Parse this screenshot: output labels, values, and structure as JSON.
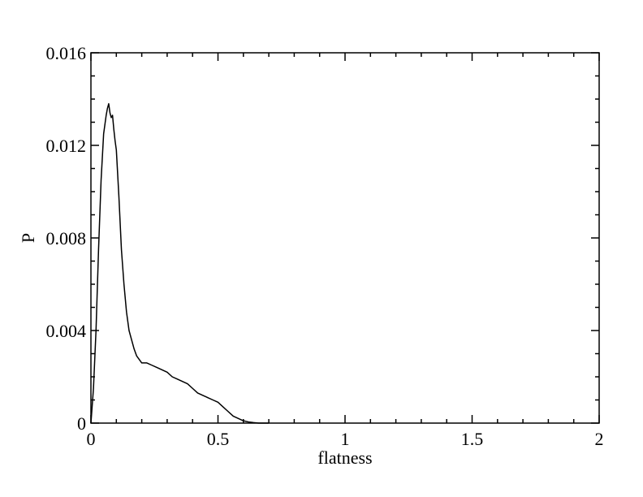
{
  "chart_data": {
    "type": "line",
    "title": "",
    "xlabel": "flatness",
    "ylabel": "P",
    "xlim": [
      0,
      2
    ],
    "ylim": [
      0,
      0.016
    ],
    "grid": false,
    "legend": "none",
    "line_color": "#000000",
    "x_ticks": [
      {
        "value": 0,
        "label": "0"
      },
      {
        "value": 0.5,
        "label": "0.5"
      },
      {
        "value": 1,
        "label": "1"
      },
      {
        "value": 1.5,
        "label": "1.5"
      },
      {
        "value": 2,
        "label": "2"
      }
    ],
    "x_minor_ticks": [
      0.1,
      0.2,
      0.3,
      0.4,
      0.6,
      0.7,
      0.8,
      0.9,
      1.1,
      1.2,
      1.3,
      1.4,
      1.6,
      1.7,
      1.8,
      1.9
    ],
    "y_ticks": [
      {
        "value": 0,
        "label": "0"
      },
      {
        "value": 0.004,
        "label": "0.004"
      },
      {
        "value": 0.008,
        "label": "0.008"
      },
      {
        "value": 0.012,
        "label": "0.012"
      },
      {
        "value": 0.016,
        "label": "0.016"
      }
    ],
    "y_minor_ticks": [
      0.001,
      0.002,
      0.003,
      0.005,
      0.006,
      0.007,
      0.009,
      0.01,
      0.011,
      0.013,
      0.014,
      0.015
    ],
    "series": [
      {
        "x": [
          0.0,
          0.01,
          0.02,
          0.03,
          0.04,
          0.05,
          0.06,
          0.065,
          0.07,
          0.075,
          0.08,
          0.085,
          0.09,
          0.095,
          0.1,
          0.11,
          0.12,
          0.13,
          0.14,
          0.15,
          0.16,
          0.17,
          0.18,
          0.2,
          0.22,
          0.24,
          0.26,
          0.28,
          0.3,
          0.32,
          0.34,
          0.36,
          0.38,
          0.4,
          0.42,
          0.44,
          0.46,
          0.48,
          0.5,
          0.52,
          0.54,
          0.56,
          0.58,
          0.6,
          0.62,
          0.64,
          0.66,
          0.68,
          0.7
        ],
        "y": [
          0.0,
          0.0015,
          0.004,
          0.0075,
          0.0105,
          0.0125,
          0.0133,
          0.0136,
          0.0138,
          0.0134,
          0.0132,
          0.0133,
          0.0127,
          0.0122,
          0.0118,
          0.0098,
          0.0075,
          0.006,
          0.0048,
          0.004,
          0.0036,
          0.0032,
          0.0029,
          0.0026,
          0.0026,
          0.0025,
          0.0024,
          0.0023,
          0.0022,
          0.002,
          0.0019,
          0.0018,
          0.0017,
          0.0015,
          0.0013,
          0.0012,
          0.0011,
          0.001,
          0.0009,
          0.0007,
          0.0005,
          0.0003,
          0.0002,
          0.0001,
          5e-05,
          2e-05,
          0.0,
          0.0,
          0.0
        ]
      }
    ]
  }
}
